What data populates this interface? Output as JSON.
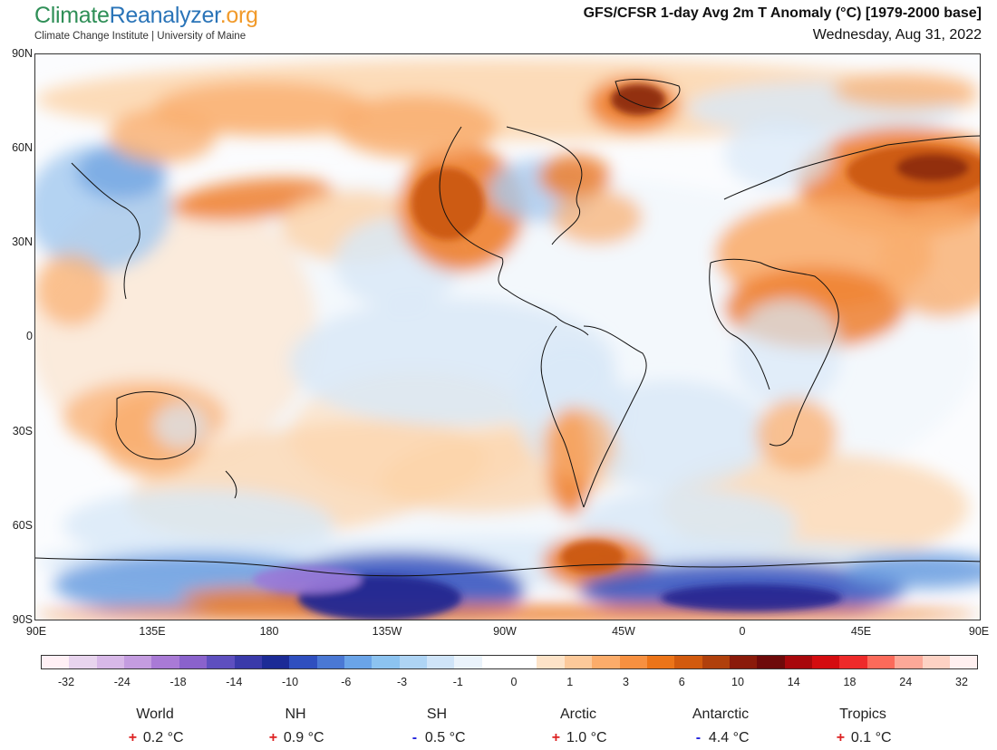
{
  "logo": {
    "part1": "Climate",
    "part2": "Reanalyzer",
    "part3": ".org",
    "subtitle": "Climate Change Institute | University of Maine"
  },
  "title": {
    "main": "GFS/CFSR 1-day Avg 2m T Anomaly (°C) [1979-2000 base]",
    "date": "Wednesday, Aug 31, 2022"
  },
  "lat_labels": [
    "90N",
    "60N",
    "30N",
    "0",
    "30S",
    "60S",
    "90S"
  ],
  "lon_labels": [
    "90E",
    "135E",
    "180",
    "135W",
    "90W",
    "45W",
    "0",
    "45E",
    "90E"
  ],
  "colorbar": {
    "colors": [
      "#fff0f5",
      "#e8d4ee",
      "#d8b8e8",
      "#c49ce0",
      "#a97ad6",
      "#8a62cc",
      "#5e4fbf",
      "#3a3aaa",
      "#1c2b96",
      "#2f4fbf",
      "#4a78d4",
      "#6aa4e8",
      "#8cc3f0",
      "#aed4f4",
      "#cfe4f8",
      "#eaf3fb",
      "#ffffff",
      "#ffffff",
      "#fde3c8",
      "#fcc99a",
      "#fbac6a",
      "#f79040",
      "#ec7418",
      "#d25a0e",
      "#b0400c",
      "#8a1a0a",
      "#6e0a0a",
      "#a8080c",
      "#d40c10",
      "#ee2a2a",
      "#fb6a5a",
      "#fca898",
      "#fdd2c4",
      "#fff0f0"
    ],
    "labels": [
      "-32",
      "-24",
      "-18",
      "-14",
      "-10",
      "-6",
      "-3",
      "-1",
      "0",
      "1",
      "3",
      "6",
      "10",
      "14",
      "18",
      "24",
      "32"
    ]
  },
  "stats": [
    {
      "name": "World",
      "sign": "+",
      "value": "0.2 °C"
    },
    {
      "name": "NH",
      "sign": "+",
      "value": "0.9 °C"
    },
    {
      "name": "SH",
      "sign": "-",
      "value": "0.5 °C"
    },
    {
      "name": "Arctic",
      "sign": "+",
      "value": "1.0 °C"
    },
    {
      "name": "Antarctic",
      "sign": "-",
      "value": "4.4 °C"
    },
    {
      "name": "Tropics",
      "sign": "+",
      "value": "0.1 °C"
    }
  ]
}
